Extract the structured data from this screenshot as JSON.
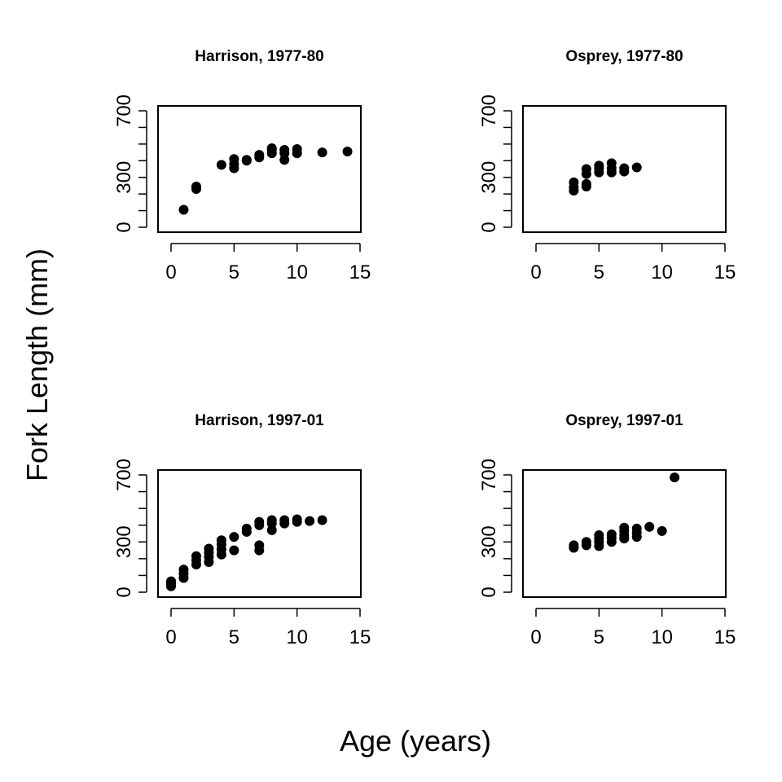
{
  "figure": {
    "ylabel": "Fork Length (mm)",
    "xlabel": "Age (years)"
  },
  "chart_data": [
    {
      "type": "scatter",
      "title": "Harrison, 1977-80",
      "xlim": [
        0,
        15
      ],
      "ylim": [
        0,
        700
      ],
      "xticks": [
        0,
        5,
        10,
        15
      ],
      "yticks": [
        0,
        100,
        200,
        300,
        400,
        500,
        600,
        700
      ],
      "ytick_labels": [
        "0",
        "",
        "",
        "300",
        "",
        "",
        "",
        "700"
      ],
      "grid": false,
      "points": [
        [
          1,
          105
        ],
        [
          2,
          230
        ],
        [
          2,
          245
        ],
        [
          4,
          375
        ],
        [
          5,
          355
        ],
        [
          5,
          380
        ],
        [
          5,
          410
        ],
        [
          6,
          400
        ],
        [
          6,
          405
        ],
        [
          7,
          420
        ],
        [
          7,
          435
        ],
        [
          8,
          445
        ],
        [
          8,
          465
        ],
        [
          8,
          475
        ],
        [
          9,
          405
        ],
        [
          9,
          445
        ],
        [
          9,
          465
        ],
        [
          10,
          445
        ],
        [
          10,
          470
        ],
        [
          12,
          450
        ],
        [
          14,
          455
        ]
      ]
    },
    {
      "type": "scatter",
      "title": "Osprey, 1977-80",
      "xlim": [
        0,
        15
      ],
      "ylim": [
        0,
        700
      ],
      "xticks": [
        0,
        5,
        10,
        15
      ],
      "yticks": [
        0,
        100,
        200,
        300,
        400,
        500,
        600,
        700
      ],
      "ytick_labels": [
        "0",
        "",
        "",
        "300",
        "",
        "",
        "",
        "700"
      ],
      "grid": false,
      "points": [
        [
          3,
          220
        ],
        [
          3,
          240
        ],
        [
          3,
          270
        ],
        [
          4,
          245
        ],
        [
          4,
          260
        ],
        [
          4,
          320
        ],
        [
          4,
          350
        ],
        [
          5,
          330
        ],
        [
          5,
          355
        ],
        [
          5,
          370
        ],
        [
          6,
          330
        ],
        [
          6,
          355
        ],
        [
          6,
          385
        ],
        [
          7,
          335
        ],
        [
          7,
          355
        ],
        [
          8,
          360
        ]
      ]
    },
    {
      "type": "scatter",
      "title": "Harrison, 1997-01",
      "xlim": [
        0,
        15
      ],
      "ylim": [
        0,
        700
      ],
      "xticks": [
        0,
        5,
        10,
        15
      ],
      "yticks": [
        0,
        100,
        200,
        300,
        400,
        500,
        600,
        700
      ],
      "ytick_labels": [
        "0",
        "",
        "",
        "300",
        "",
        "",
        "",
        "700"
      ],
      "grid": false,
      "points": [
        [
          0,
          35
        ],
        [
          0,
          50
        ],
        [
          0,
          65
        ],
        [
          1,
          85
        ],
        [
          1,
          110
        ],
        [
          1,
          135
        ],
        [
          2,
          165
        ],
        [
          2,
          190
        ],
        [
          2,
          215
        ],
        [
          3,
          180
        ],
        [
          3,
          210
        ],
        [
          3,
          235
        ],
        [
          3,
          260
        ],
        [
          4,
          225
        ],
        [
          4,
          255
        ],
        [
          4,
          285
        ],
        [
          4,
          310
        ],
        [
          5,
          250
        ],
        [
          5,
          330
        ],
        [
          6,
          360
        ],
        [
          6,
          380
        ],
        [
          7,
          250
        ],
        [
          7,
          280
        ],
        [
          7,
          400
        ],
        [
          7,
          420
        ],
        [
          8,
          370
        ],
        [
          8,
          410
        ],
        [
          8,
          430
        ],
        [
          9,
          410
        ],
        [
          9,
          430
        ],
        [
          10,
          420
        ],
        [
          10,
          435
        ],
        [
          11,
          425
        ],
        [
          12,
          430
        ]
      ]
    },
    {
      "type": "scatter",
      "title": "Osprey, 1997-01",
      "xlim": [
        0,
        15
      ],
      "ylim": [
        0,
        700
      ],
      "xticks": [
        0,
        5,
        10,
        15
      ],
      "yticks": [
        0,
        100,
        200,
        300,
        400,
        500,
        600,
        700
      ],
      "ytick_labels": [
        "0",
        "",
        "",
        "300",
        "",
        "",
        "",
        "700"
      ],
      "grid": false,
      "points": [
        [
          3,
          265
        ],
        [
          3,
          280
        ],
        [
          4,
          280
        ],
        [
          4,
          300
        ],
        [
          5,
          275
        ],
        [
          5,
          300
        ],
        [
          5,
          320
        ],
        [
          5,
          340
        ],
        [
          6,
          300
        ],
        [
          6,
          325
        ],
        [
          6,
          345
        ],
        [
          7,
          320
        ],
        [
          7,
          340
        ],
        [
          7,
          365
        ],
        [
          7,
          385
        ],
        [
          8,
          330
        ],
        [
          8,
          355
        ],
        [
          8,
          380
        ],
        [
          9,
          390
        ],
        [
          10,
          365
        ],
        [
          11,
          685
        ]
      ]
    }
  ]
}
